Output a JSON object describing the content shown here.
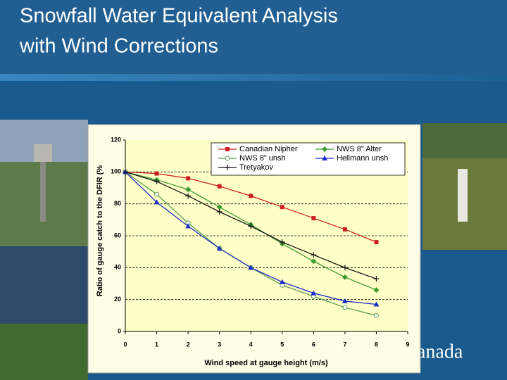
{
  "title_lines": [
    "Snowfall Water Equivalent Analysis",
    "with Wind Corrections"
  ],
  "footer_text": "anada",
  "chart_data": {
    "type": "line",
    "x_label": "Wind speed at gauge height (m/s)",
    "y_label": "Ratio of gauge catch to the DFIR (%",
    "x": [
      0,
      1,
      2,
      3,
      4,
      5,
      6,
      7,
      8
    ],
    "xlim": [
      0,
      9
    ],
    "xticks": [
      0,
      1,
      2,
      3,
      4,
      5,
      6,
      7,
      8,
      9
    ],
    "ylim": [
      0,
      120
    ],
    "yticks": [
      0,
      20,
      40,
      60,
      80,
      100,
      120
    ],
    "grid": true,
    "legend": "upper right",
    "series": [
      {
        "name": "Canadian Nipher",
        "color": "#cc2020",
        "marker": "square",
        "values": [
          100,
          99,
          96,
          91,
          85,
          78,
          71,
          64,
          56
        ]
      },
      {
        "name": "NWS 8\" Alter",
        "color": "#3c9c30",
        "marker": "diamond",
        "values": [
          100,
          95,
          89,
          78,
          67,
          55,
          44,
          34,
          26
        ]
      },
      {
        "name": "NWS 8\" unsh",
        "color": "#5aa050",
        "marker": "circle",
        "values": [
          100,
          86,
          68,
          52,
          40,
          29,
          22,
          15,
          10
        ]
      },
      {
        "name": "Hellmann unsh",
        "color": "#1c2cc8",
        "marker": "triangle",
        "values": [
          100,
          81,
          66,
          52,
          40,
          31,
          24,
          19,
          17
        ]
      },
      {
        "name": "Tretyakov",
        "color": "#111111",
        "marker": "plus",
        "values": [
          100,
          94,
          85,
          75,
          66,
          56,
          48,
          40,
          33
        ]
      }
    ]
  }
}
